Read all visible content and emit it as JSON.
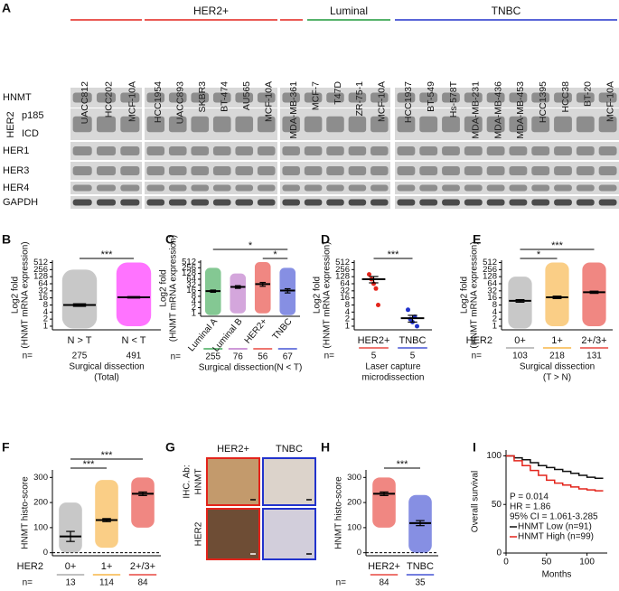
{
  "blot": {
    "label": "A",
    "groups": [
      {
        "name": "HER2+",
        "color": "#e3241b"
      },
      {
        "name": "Luminal",
        "color": "#1f9a3a"
      },
      {
        "name": "TNBC",
        "color": "#2233cc"
      }
    ],
    "lanes": [
      {
        "name": "UACC812",
        "color": "#e3241b"
      },
      {
        "name": "HCC202",
        "color": "#e3241b"
      },
      {
        "name": "MCF-10A",
        "color": "#111111"
      },
      {
        "name": "HCC1954",
        "color": "#e3241b"
      },
      {
        "name": "UACC893",
        "color": "#e3241b"
      },
      {
        "name": "SKBR3",
        "color": "#e3241b"
      },
      {
        "name": "BT-474",
        "color": "#e3241b"
      },
      {
        "name": "AU565",
        "color": "#e3241b"
      },
      {
        "name": "MCF-10A",
        "color": "#111111"
      },
      {
        "name": "MDA-MB-361",
        "color": "#e3241b"
      },
      {
        "name": "MCF-7",
        "color": "#1f9a3a"
      },
      {
        "name": "T47D",
        "color": "#1f9a3a"
      },
      {
        "name": "ZR-75-1",
        "color": "#1f9a3a"
      },
      {
        "name": "MCF-10A",
        "color": "#111111"
      },
      {
        "name": "HCC1937",
        "color": "#2233cc"
      },
      {
        "name": "BT-549",
        "color": "#2233cc"
      },
      {
        "name": "Hs-578T",
        "color": "#2233cc"
      },
      {
        "name": "MDA-MB-231",
        "color": "#2233cc"
      },
      {
        "name": "MDA-MB-436",
        "color": "#2233cc"
      },
      {
        "name": "MDA-MB-453",
        "color": "#2233cc"
      },
      {
        "name": "HCC1395",
        "color": "#2233cc"
      },
      {
        "name": "HCC38",
        "color": "#2233cc"
      },
      {
        "name": "BT-20",
        "color": "#2233cc"
      },
      {
        "name": "MCF-10A",
        "color": "#111111"
      }
    ],
    "rows": [
      "HNMT",
      "p185",
      "ICD",
      "HER1",
      "HER3",
      "HER4",
      "GAPDH"
    ],
    "row_group": "HER2"
  },
  "ihc": {
    "label": "G",
    "columns": [
      {
        "name": "HER2+",
        "color": "#e3241b"
      },
      {
        "name": "TNBC",
        "color": "#2233cc"
      }
    ],
    "antibody": "IHC. Ab:",
    "rows": [
      "HNMT",
      "HER2"
    ]
  },
  "chart_data": [
    {
      "type": "dot",
      "label": "B",
      "y_label": [
        "Log2 fold",
        "(HNMT mRNA expression)"
      ],
      "log_base": 2,
      "ylim": [
        0.7,
        640
      ],
      "yticks": [
        1,
        2,
        4,
        8,
        16,
        32,
        64,
        128,
        256,
        512
      ],
      "categories": [
        "N > T",
        "N < T"
      ],
      "colors": [
        "#9a9a9a",
        "#ff00ff"
      ],
      "means": [
        8,
        17
      ],
      "errors": [
        1,
        1.2
      ],
      "ranges": [
        [
          0.8,
          256
        ],
        [
          1,
          512
        ]
      ],
      "n_label": "n=",
      "n": [
        275,
        491
      ],
      "x_label": [
        "Surgical dissection",
        "(Total)"
      ],
      "underline": false,
      "colored_labels": false,
      "significance": [
        {
          "text": "***",
          "from": 0,
          "to": 1
        }
      ]
    },
    {
      "type": "dot",
      "label": "C",
      "y_label": [
        "Log2 fold",
        "(HNMT mRNA expression)"
      ],
      "log_base": 2,
      "ylim": [
        0.7,
        640
      ],
      "yticks": [
        1,
        2,
        4,
        8,
        16,
        32,
        64,
        128,
        256,
        512
      ],
      "categories": [
        "Luminal A",
        "Luminal B",
        "HER2+",
        "TNBC"
      ],
      "colors": [
        "#1f9a3a",
        "#b05cc0",
        "#e3241b",
        "#2233cc"
      ],
      "means": [
        15,
        25,
        35,
        16
      ],
      "errors": [
        2,
        4,
        8,
        4
      ],
      "ranges": [
        [
          0.8,
          256
        ],
        [
          1,
          128
        ],
        [
          1,
          512
        ],
        [
          0.8,
          256
        ]
      ],
      "n_label": "n=",
      "n": [
        255,
        76,
        56,
        67
      ],
      "x_label": [
        "Surgical dissection(N < T)"
      ],
      "underline": true,
      "colored_labels": true,
      "rotate_labels": true,
      "significance": [
        {
          "text": "*",
          "from": 2,
          "to": 3
        },
        {
          "text": "*",
          "from": 0,
          "to": 3
        }
      ]
    },
    {
      "type": "dot",
      "label": "D",
      "y_label": [
        "Log2 fold",
        "(HNMT mRNA expression)"
      ],
      "log_base": 2,
      "ylim": [
        0.7,
        640
      ],
      "yticks": [
        1,
        2,
        4,
        8,
        16,
        32,
        64,
        128,
        256,
        512
      ],
      "categories": [
        "HER2+",
        "TNBC"
      ],
      "colors": [
        "#e3241b",
        "#2233cc"
      ],
      "means": [
        100,
        2.2
      ],
      "errors": [
        30,
        0.7
      ],
      "points": [
        [
          160,
          100,
          64,
          40,
          8
        ],
        [
          5,
          2,
          1.5,
          2.5,
          1
        ]
      ],
      "n_label": "n=",
      "n": [
        5,
        5
      ],
      "x_label": [
        "Laser capture",
        "microdissection"
      ],
      "underline": true,
      "colored_labels": true,
      "significance": [
        {
          "text": "***",
          "from": 0,
          "to": 1
        }
      ]
    },
    {
      "type": "dot",
      "label": "E",
      "y_label": [
        "Log2 fold",
        "(HNMT mRNA expression)"
      ],
      "log_base": 2,
      "ylim": [
        0.7,
        640
      ],
      "yticks": [
        1,
        2,
        4,
        8,
        16,
        32,
        64,
        128,
        256,
        512
      ],
      "group_label": "HER2",
      "categories": [
        "0+",
        "1+",
        "2+/3+"
      ],
      "colors": [
        "#9a9a9a",
        "#f5a623",
        "#e3241b"
      ],
      "means": [
        12,
        17,
        28
      ],
      "errors": [
        1.5,
        2,
        3
      ],
      "ranges": [
        [
          0.8,
          128
        ],
        [
          1,
          512
        ],
        [
          1,
          512
        ]
      ],
      "n_label": "n=",
      "n": [
        103,
        218,
        131
      ],
      "x_label": [
        "Surgical dissection",
        "(T > N)"
      ],
      "underline": true,
      "colored_labels": false,
      "significance": [
        {
          "text": "*",
          "from": 0,
          "to": 1
        },
        {
          "text": "***",
          "from": 0,
          "to": 2
        }
      ]
    },
    {
      "type": "dot",
      "label": "F",
      "y_label": [
        "HNMT histo-score"
      ],
      "ylim": [
        -12,
        330
      ],
      "yticks": [
        0,
        100,
        200,
        300
      ],
      "zero_line": true,
      "group_label": "HER2",
      "categories": [
        "0+",
        "1+",
        "2+/3+"
      ],
      "colors": [
        "#9a9a9a",
        "#f5a623",
        "#e3241b"
      ],
      "means": [
        65,
        130,
        235
      ],
      "errors": [
        20,
        6,
        7
      ],
      "ranges": [
        [
          0,
          200
        ],
        [
          20,
          290
        ],
        [
          100,
          300
        ]
      ],
      "n_label": "n=",
      "n": [
        13,
        114,
        84
      ],
      "underline": true,
      "colored_labels": true,
      "significance": [
        {
          "text": "***",
          "from": 0,
          "to": 1
        },
        {
          "text": "***",
          "from": 0,
          "to": 2
        }
      ]
    },
    {
      "type": "dot",
      "label": "H",
      "y_label": [
        "HNMT histo-score"
      ],
      "ylim": [
        -12,
        330
      ],
      "yticks": [
        0,
        100,
        200,
        300
      ],
      "zero_line": true,
      "categories": [
        "HER2+",
        "TNBC"
      ],
      "colors": [
        "#e3241b",
        "#2233cc"
      ],
      "means": [
        235,
        118
      ],
      "errors": [
        7,
        10
      ],
      "ranges": [
        [
          100,
          300
        ],
        [
          0,
          230
        ]
      ],
      "n_label": "n=",
      "n": [
        84,
        35
      ],
      "underline": true,
      "colored_labels": true,
      "significance": [
        {
          "text": "***",
          "from": 0,
          "to": 1
        }
      ]
    },
    {
      "type": "line",
      "label": "I",
      "y_label": [
        "Overall survival"
      ],
      "x_label": [
        "Months"
      ],
      "xlim": [
        0,
        125
      ],
      "ylim": [
        0,
        106
      ],
      "xticks": [
        0,
        50,
        100
      ],
      "yticks": [
        0,
        50,
        100
      ],
      "x": [
        0,
        10,
        20,
        30,
        40,
        50,
        60,
        70,
        80,
        90,
        100,
        110,
        120
      ],
      "series": [
        {
          "name": "HNMT Low (n=91)",
          "color": "#111111",
          "values": [
            100,
            98,
            96,
            93,
            90,
            88,
            86,
            84,
            82,
            80,
            78,
            77,
            77
          ]
        },
        {
          "name": "HNMT High (n=99)",
          "color": "#e3241b",
          "values": [
            100,
            95,
            90,
            85,
            80,
            75,
            72,
            70,
            68,
            66,
            65,
            64,
            64
          ]
        }
      ],
      "annotations": [
        "P = 0.014",
        "HR = 1.86",
        "95% CI = 1.061-3.285"
      ]
    }
  ]
}
